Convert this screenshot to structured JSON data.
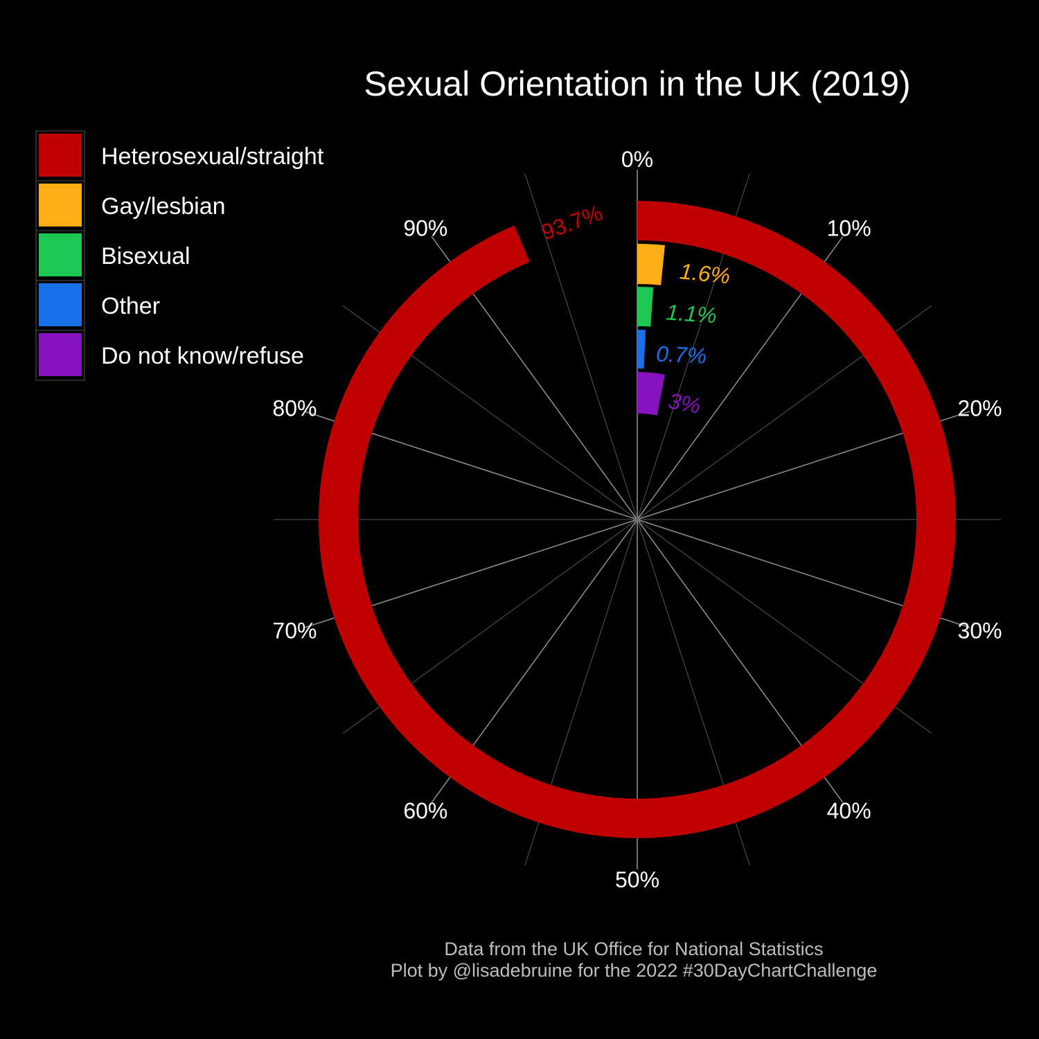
{
  "chart_data": {
    "type": "radial-bar",
    "title": "Sexual Orientation in the UK (2019)",
    "caption": [
      "Data from the UK Office for National Statistics",
      "Plot by @lisadebruine for the 2022 #30DayChartChallenge"
    ],
    "axis_range": [
      0,
      100
    ],
    "axis_ticks": [
      "0%",
      "10%",
      "20%",
      "30%",
      "40%",
      "50%",
      "60%",
      "70%",
      "80%",
      "90%"
    ],
    "grid": true,
    "legend_position": "top-left",
    "series": [
      {
        "name": "Heterosexual/straight",
        "value": 93.7,
        "label": "93.7%",
        "color": "#C00000"
      },
      {
        "name": "Gay/lesbian",
        "value": 1.6,
        "label": "1.6%",
        "color": "#FDAD15"
      },
      {
        "name": "Bisexual",
        "value": 1.1,
        "label": "1.1%",
        "color": "#1EC654"
      },
      {
        "name": "Other",
        "value": 0.7,
        "label": "0.7%",
        "color": "#1A70E8"
      },
      {
        "name": "Do not know/refuse",
        "value": 3,
        "label": "3%",
        "color": "#8712BF"
      }
    ]
  }
}
